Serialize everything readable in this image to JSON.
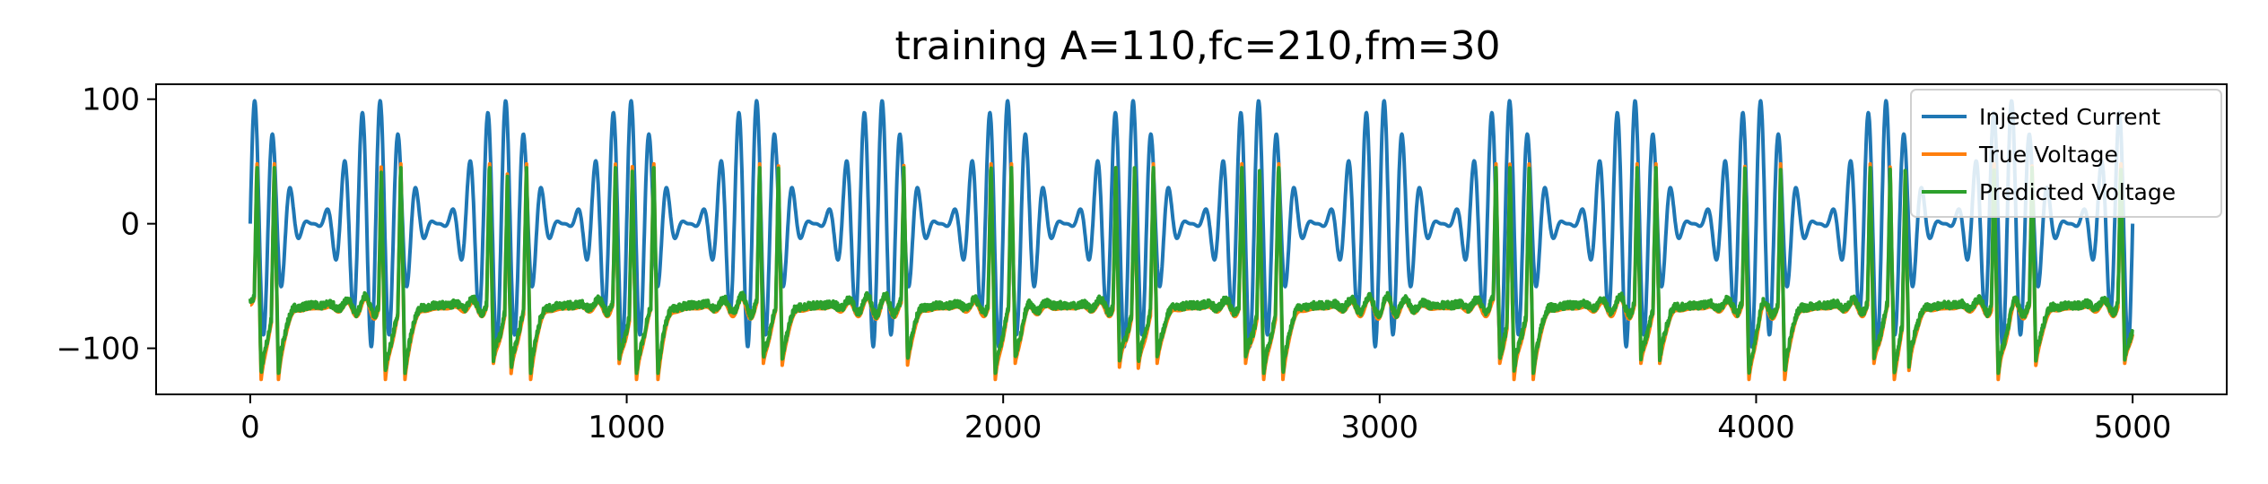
{
  "chart_data": {
    "type": "line",
    "title": "training A=110,fc=210,fm=30",
    "xlabel": "",
    "ylabel": "",
    "xlim": [
      -250,
      5250
    ],
    "ylim": [
      -137,
      112
    ],
    "x_ticks": [
      0,
      1000,
      2000,
      3000,
      4000,
      5000
    ],
    "x_tick_labels": [
      "0",
      "1000",
      "2000",
      "3000",
      "4000",
      "5000"
    ],
    "y_ticks": [
      100,
      0,
      -100
    ],
    "y_tick_labels": [
      "100",
      "0",
      "−100"
    ],
    "grid": false,
    "legend_position": "upper right",
    "series": [
      {
        "name": "Injected Current",
        "color": "#1f77b4",
        "amplitude": 110,
        "carrier_frequency": 210,
        "modulation_frequency": 30,
        "x_range": [
          0,
          5000
        ],
        "y_range": [
          -110,
          100
        ]
      },
      {
        "name": "True Voltage",
        "color": "#ff7f0e",
        "x_range": [
          0,
          5000
        ],
        "y_range": [
          -125,
          48
        ]
      },
      {
        "name": "Predicted Voltage",
        "color": "#2ca02c",
        "x_range": [
          0,
          5000
        ],
        "y_range": [
          -120,
          45
        ]
      }
    ]
  }
}
